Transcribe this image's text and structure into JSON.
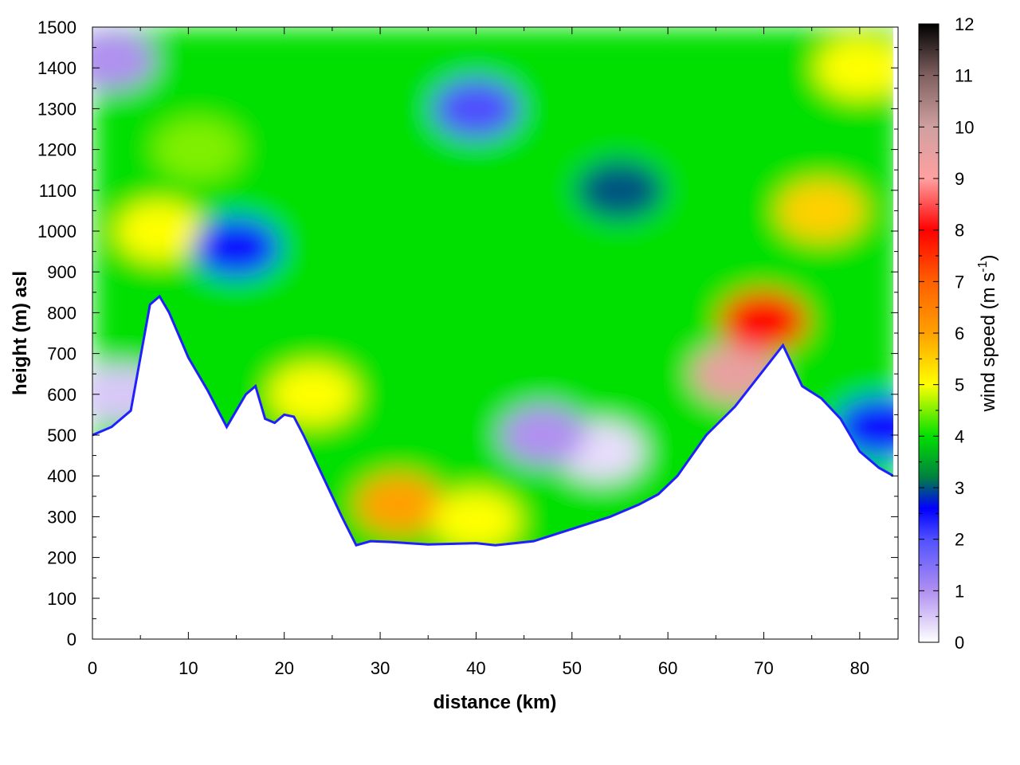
{
  "chart_data": {
    "type": "heatmap",
    "title": "",
    "xlabel": "distance (km)",
    "ylabel": "height (m) asl",
    "colorbar_label": "wind speed (m s-1)",
    "xlim": [
      0,
      84
    ],
    "ylim": [
      0,
      1500
    ],
    "clim": [
      0,
      12
    ],
    "grid": true,
    "x_ticks": [
      0,
      10,
      20,
      30,
      40,
      50,
      60,
      70,
      80
    ],
    "y_ticks": [
      0,
      100,
      200,
      300,
      400,
      500,
      600,
      700,
      800,
      900,
      1000,
      1100,
      1200,
      1300,
      1400,
      1500
    ],
    "colorbar_ticks": [
      0,
      1,
      2,
      3,
      4,
      5,
      6,
      7,
      8,
      9,
      10,
      11,
      12
    ],
    "colormap": [
      {
        "value": 0,
        "color": "#ffffff"
      },
      {
        "value": 1,
        "color": "#b090f0"
      },
      {
        "value": 2,
        "color": "#5050ff"
      },
      {
        "value": 2.6,
        "color": "#0000ff"
      },
      {
        "value": 3.2,
        "color": "#008040"
      },
      {
        "value": 4,
        "color": "#00e000"
      },
      {
        "value": 5,
        "color": "#ffff00"
      },
      {
        "value": 6,
        "color": "#ffa000"
      },
      {
        "value": 7,
        "color": "#ff6000"
      },
      {
        "value": 8,
        "color": "#ff0000"
      },
      {
        "value": 9,
        "color": "#ffa0a0"
      },
      {
        "value": 10,
        "color": "#d0a0a0"
      },
      {
        "value": 11,
        "color": "#806060"
      },
      {
        "value": 12,
        "color": "#000000"
      }
    ],
    "terrain": {
      "distance_km": [
        0,
        2,
        4,
        6,
        7,
        8,
        10,
        12,
        14,
        16,
        17,
        18,
        19,
        20,
        21,
        22,
        24,
        26,
        27.5,
        29,
        31,
        35,
        40,
        42,
        46,
        50,
        54,
        57,
        59,
        61,
        64,
        67,
        70,
        72,
        74,
        76,
        78,
        80,
        82,
        83.5
      ],
      "ground_height_m": [
        500,
        520,
        560,
        820,
        840,
        800,
        690,
        610,
        520,
        600,
        620,
        540,
        530,
        550,
        545,
        500,
        400,
        300,
        230,
        240,
        238,
        232,
        235,
        230,
        240,
        270,
        300,
        330,
        355,
        400,
        500,
        570,
        660,
        720,
        620,
        590,
        540,
        460,
        420,
        400
      ]
    },
    "wind_field_features": [
      {
        "x": 11,
        "y": 1200,
        "value": 4.5
      },
      {
        "x": 7,
        "y": 1000,
        "value": 5
      },
      {
        "x": 15,
        "y": 960,
        "value": 2.5
      },
      {
        "x": 2,
        "y": 1420,
        "value": 1
      },
      {
        "x": 3,
        "y": 600,
        "value": 0.5
      },
      {
        "x": 23,
        "y": 600,
        "value": 5
      },
      {
        "x": 32,
        "y": 330,
        "value": 6
      },
      {
        "x": 40,
        "y": 290,
        "value": 5
      },
      {
        "x": 45,
        "y": 550,
        "value": 4
      },
      {
        "x": 53,
        "y": 460,
        "value": 0.3
      },
      {
        "x": 47,
        "y": 500,
        "value": 1
      },
      {
        "x": 40,
        "y": 1300,
        "value": 2
      },
      {
        "x": 40,
        "y": 800,
        "value": 4
      },
      {
        "x": 55,
        "y": 1100,
        "value": 3
      },
      {
        "x": 67,
        "y": 650,
        "value": 9.5
      },
      {
        "x": 70,
        "y": 780,
        "value": 8
      },
      {
        "x": 76,
        "y": 1050,
        "value": 5.5
      },
      {
        "x": 80,
        "y": 1400,
        "value": 5
      },
      {
        "x": 82,
        "y": 520,
        "value": 2.5
      }
    ]
  }
}
